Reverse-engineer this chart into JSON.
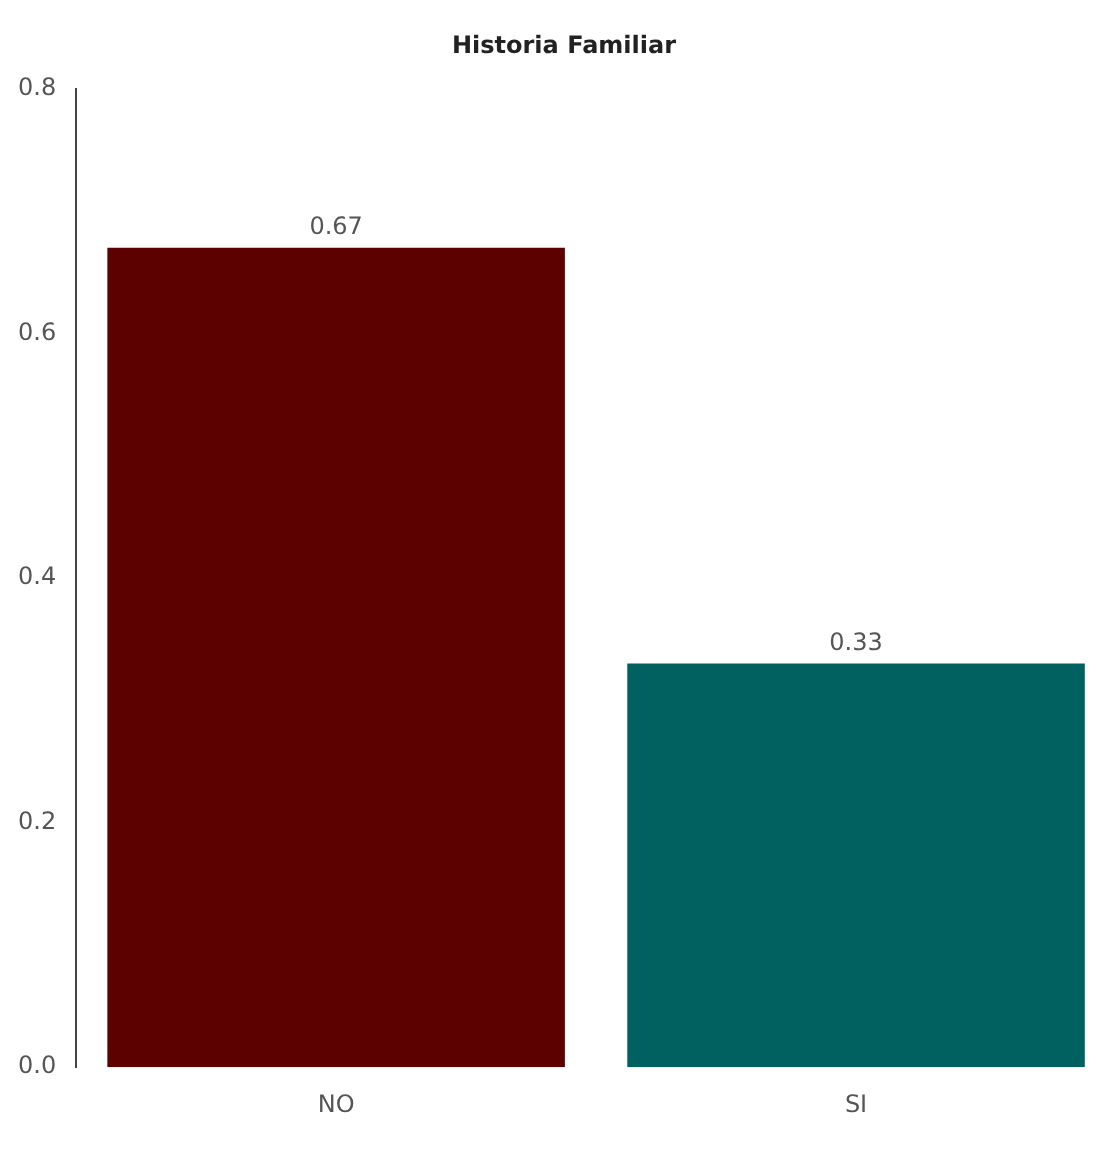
{
  "chart_data": {
    "type": "bar",
    "title": "Historia Familiar",
    "categories": [
      "NO",
      "SI"
    ],
    "values": [
      0.67,
      0.33
    ],
    "colors": [
      "#5c0000",
      "#006161"
    ],
    "ylim": [
      0,
      0.8
    ],
    "yticks": [
      {
        "value": 0,
        "label": "0.0"
      },
      {
        "value": 0.2,
        "label": "0.2"
      },
      {
        "value": 0.4,
        "label": "0.4"
      },
      {
        "value": 0.6,
        "label": "0.6"
      },
      {
        "value": 0.8,
        "label": "0.8"
      }
    ],
    "grid": false,
    "legend": false,
    "data_labels": true
  }
}
